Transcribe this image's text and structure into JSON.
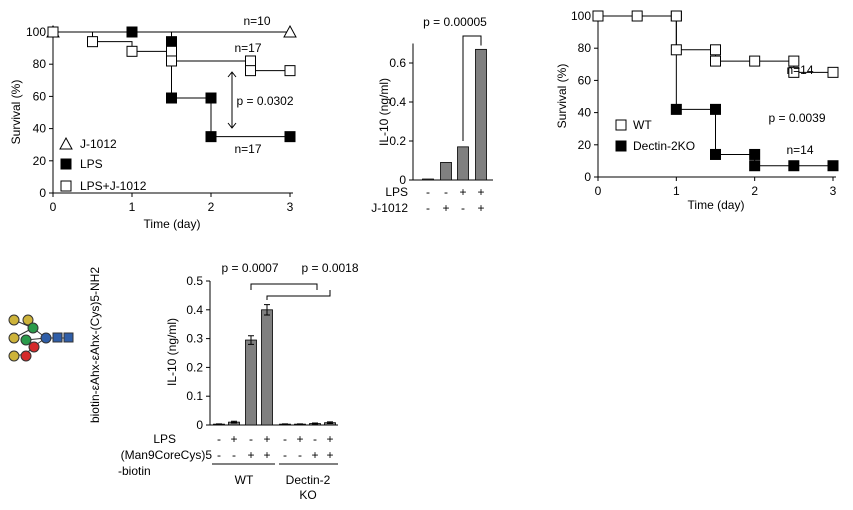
{
  "chart_data": [
    {
      "type": "line",
      "step": true,
      "y_label": "Survival (%)",
      "x_label": "Time (day)",
      "xlim": [
        0,
        3
      ],
      "xticks": [
        0,
        1,
        2,
        3
      ],
      "ylim": [
        0,
        100
      ],
      "yticks": [
        0,
        20,
        40,
        60,
        80,
        100
      ],
      "series": [
        {
          "name": "J-1012",
          "marker": "triangle",
          "color": "#000000",
          "fill": "#ffffff",
          "x": [
            0,
            3
          ],
          "values": [
            100,
            100
          ]
        },
        {
          "name": "LPS",
          "marker": "square",
          "color": "#000000",
          "fill": "#000000",
          "x": [
            0,
            1,
            1.5,
            1.5,
            2,
            2,
            3
          ],
          "values": [
            100,
            100,
            94,
            59,
            59,
            35,
            35
          ]
        },
        {
          "name": "LPS+J-1012",
          "marker": "square",
          "color": "#000000",
          "fill": "#ffffff",
          "x": [
            0,
            0.5,
            1,
            1.5,
            1.5,
            2.5,
            2.5,
            3
          ],
          "values": [
            100,
            94,
            88,
            88,
            82,
            82,
            76,
            76
          ]
        }
      ],
      "annotations": [
        "n=10",
        "n=17",
        "p = 0.0302",
        "n=17"
      ]
    },
    {
      "type": "bar",
      "y_label": "IL-10 (ng/ml)",
      "ylim": [
        0,
        0.7
      ],
      "yticks": [
        0,
        0.2,
        0.4,
        0.6
      ],
      "color": "#808080",
      "values": [
        0.005,
        0.09,
        0.17,
        0.67
      ],
      "condition_rows": [
        {
          "label": "LPS",
          "signs": [
            "-",
            "-",
            "+",
            "+"
          ]
        },
        {
          "label": "J-1012",
          "signs": [
            "-",
            "+",
            "-",
            "+"
          ]
        }
      ],
      "annotations": [
        "p = 0.00005"
      ]
    },
    {
      "type": "line",
      "step": true,
      "y_label": "Survival (%)",
      "x_label": "Time (day)",
      "xlim": [
        0,
        3
      ],
      "xticks": [
        0,
        1,
        2,
        3
      ],
      "ylim": [
        0,
        100
      ],
      "yticks": [
        0,
        20,
        40,
        60,
        80,
        100
      ],
      "series": [
        {
          "name": "Dectin-2KO",
          "marker": "square",
          "color": "#000000",
          "fill": "#000000",
          "x": [
            1,
            1,
            1.5,
            1.5,
            2,
            2,
            2.5,
            3
          ],
          "values": [
            100,
            42,
            42,
            14,
            14,
            7,
            7,
            7
          ]
        },
        {
          "name": "WT",
          "marker": "square",
          "color": "#000000",
          "fill": "#ffffff",
          "x": [
            0,
            0.5,
            1,
            1,
            1.5,
            1.5,
            2,
            2.5,
            2.5,
            3
          ],
          "values": [
            100,
            100,
            100,
            79,
            79,
            72,
            72,
            72,
            65,
            65
          ]
        }
      ],
      "legend_order": [
        1,
        0
      ],
      "annotations": [
        "n=14",
        "p = 0.0039",
        "n=14"
      ]
    },
    {
      "type": "bar",
      "y_label": "IL-10 (ng/ml)",
      "ylim": [
        0,
        0.5
      ],
      "yticks": [
        0,
        0.1,
        0.2,
        0.3,
        0.4,
        0.5
      ],
      "color": "#808080",
      "values": [
        0.003,
        0.01,
        0.295,
        0.4,
        0.003,
        0.003,
        0.005,
        0.008
      ],
      "errors": [
        0.001,
        0.003,
        0.015,
        0.018,
        0.001,
        0.001,
        0.002,
        0.003
      ],
      "condition_rows": [
        {
          "label": "LPS",
          "signs": [
            "-",
            "+",
            "-",
            "+",
            "-",
            "+",
            "-",
            "+"
          ]
        },
        {
          "label": "(Man9CoreCys)5",
          "signs": [
            "-",
            "-",
            "+",
            "+",
            "-",
            "-",
            "+",
            "+"
          ]
        }
      ],
      "row_note": "-biotin",
      "groups": [
        "WT",
        "Dectin-2",
        "KO"
      ],
      "annotations": [
        "p = 0.0007",
        "p = 0.0018"
      ]
    }
  ],
  "structure_label": "biotin-εAhx-εAhx-(Cys)5-NH2"
}
